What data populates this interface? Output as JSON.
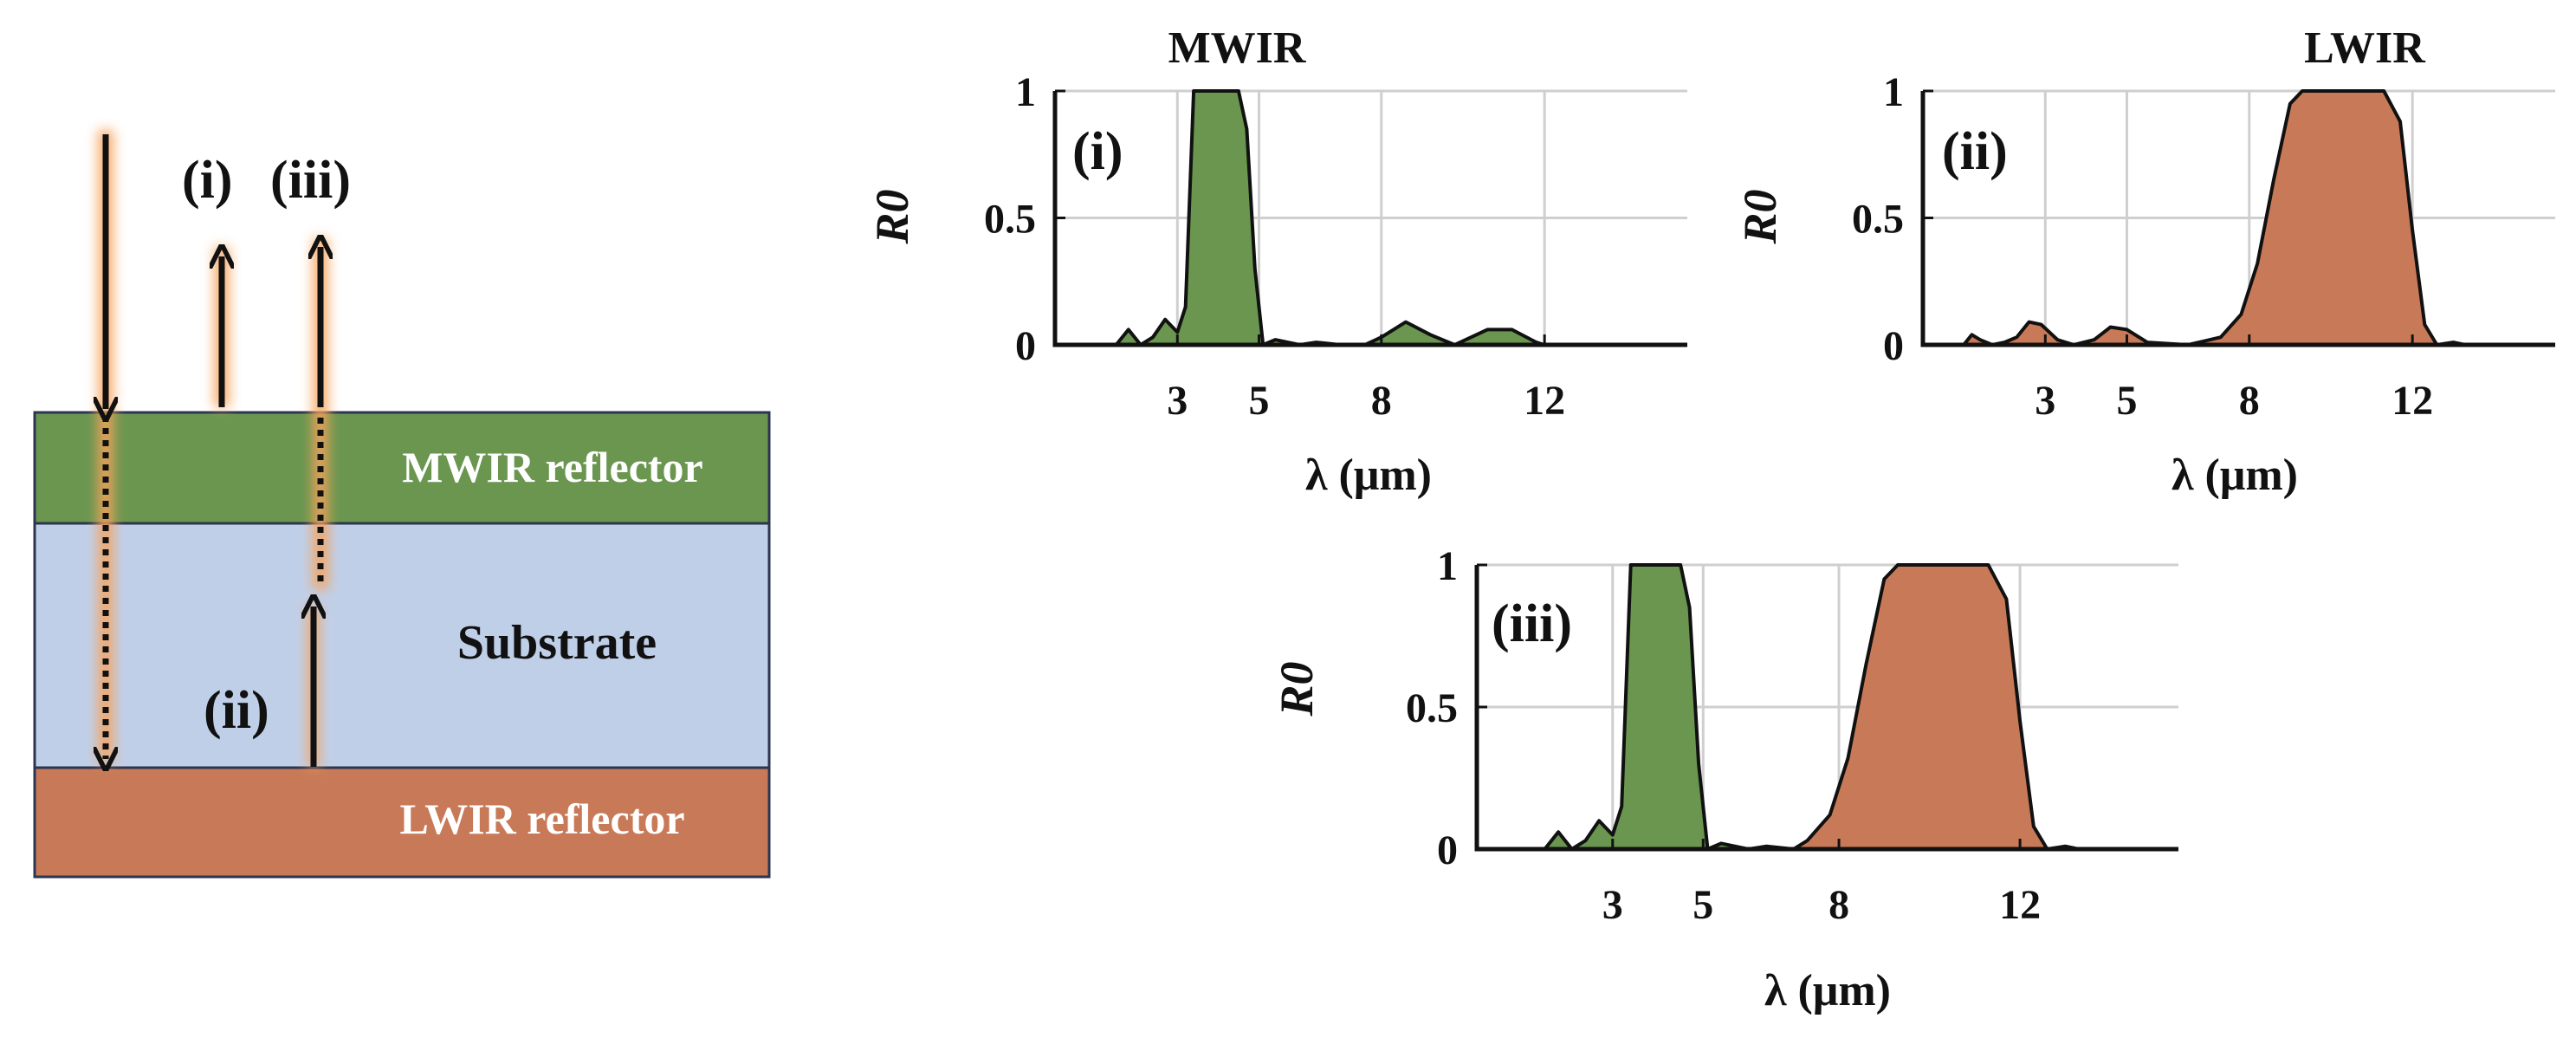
{
  "schematic": {
    "layers": [
      {
        "name": "MWIR reflector",
        "color": "#6a9650",
        "label_color": "#ffffff"
      },
      {
        "name": "Substrate",
        "color": "#c0cfe8",
        "label_color": "#111111"
      },
      {
        "name": "LWIR reflector",
        "color": "#c87a58",
        "label_color": "#ffffff"
      }
    ],
    "beam_labels": {
      "i": "(i)",
      "iii": "(iii)",
      "ii": "(ii)"
    },
    "glow_color": "#f7a35c"
  },
  "colors": {
    "mwir": "#6a9650",
    "lwir": "#c87a58",
    "grid": "#cfcfcf"
  },
  "chart_data": [
    {
      "type": "area",
      "panel": "(i)",
      "title": "MWIR",
      "xlabel": "λ (μm)",
      "ylabel": "R0",
      "xlim": [
        0,
        15.5
      ],
      "ylim": [
        0,
        1
      ],
      "xticks": [
        3,
        5,
        8,
        12
      ],
      "yticks": [
        0,
        0.5,
        1
      ],
      "grid": true,
      "series": [
        {
          "band": "mwir",
          "x": [
            1.0,
            1.5,
            1.8,
            2.1,
            2.4,
            2.7,
            3.0,
            3.2,
            3.4,
            3.6,
            3.8,
            4.5,
            4.7,
            4.9,
            5.1,
            5.4,
            6.0,
            6.4,
            7.0,
            7.6,
            8.0,
            8.6,
            9.2,
            9.8,
            10.2,
            10.6,
            11.2,
            11.8,
            12.0
          ],
          "y": [
            0,
            0,
            0.06,
            0,
            0.03,
            0.1,
            0.05,
            0.15,
            1.0,
            1.0,
            1.0,
            1.0,
            0.85,
            0.3,
            0,
            0.02,
            0,
            0.01,
            0,
            0,
            0.03,
            0.09,
            0.04,
            0,
            0.03,
            0.06,
            0.06,
            0.01,
            0
          ]
        }
      ]
    },
    {
      "type": "area",
      "panel": "(ii)",
      "title": "LWIR",
      "xlabel": "λ (μm)",
      "ylabel": "R0",
      "xlim": [
        0,
        15.5
      ],
      "ylim": [
        0,
        1
      ],
      "xticks": [
        3,
        5,
        8,
        12
      ],
      "yticks": [
        0,
        0.5,
        1
      ],
      "grid": true,
      "series": [
        {
          "band": "lwir",
          "x": [
            1.0,
            1.2,
            1.4,
            1.7,
            2.0,
            2.3,
            2.6,
            2.9,
            3.3,
            3.7,
            4.2,
            4.6,
            5.0,
            5.5,
            6.5,
            7.3,
            7.8,
            8.2,
            8.6,
            9.0,
            9.3,
            10.3,
            11.3,
            11.7,
            12.0,
            12.3,
            12.6,
            13.0,
            13.3
          ],
          "y": [
            0,
            0.04,
            0.02,
            0,
            0.01,
            0.03,
            0.09,
            0.08,
            0.02,
            0,
            0.02,
            0.07,
            0.06,
            0.01,
            0,
            0.03,
            0.12,
            0.32,
            0.65,
            0.95,
            1.0,
            1.0,
            1.0,
            0.88,
            0.45,
            0.08,
            0,
            0.01,
            0
          ]
        }
      ]
    },
    {
      "type": "area",
      "panel": "(iii)",
      "title": "",
      "xlabel": "λ (μm)",
      "ylabel": "R0",
      "xlim": [
        0,
        15.5
      ],
      "ylim": [
        0,
        1
      ],
      "xticks": [
        3,
        5,
        8,
        12
      ],
      "yticks": [
        0,
        0.5,
        1
      ],
      "grid": true,
      "series": [
        {
          "band": "mwir",
          "x": [
            1.0,
            1.5,
            1.8,
            2.1,
            2.4,
            2.7,
            3.0,
            3.2,
            3.4,
            3.6,
            3.8,
            4.5,
            4.7,
            4.9,
            5.1,
            5.4,
            6.0,
            6.4,
            7.0
          ],
          "y": [
            0,
            0,
            0.06,
            0,
            0.03,
            0.1,
            0.05,
            0.15,
            1.0,
            1.0,
            1.0,
            1.0,
            0.85,
            0.3,
            0,
            0.02,
            0,
            0.01,
            0
          ]
        },
        {
          "band": "lwir",
          "x": [
            7.0,
            7.3,
            7.8,
            8.2,
            8.6,
            9.0,
            9.3,
            10.3,
            11.3,
            11.7,
            12.0,
            12.3,
            12.6,
            13.0,
            13.3
          ],
          "y": [
            0,
            0.03,
            0.12,
            0.32,
            0.65,
            0.95,
            1.0,
            1.0,
            1.0,
            0.88,
            0.45,
            0.08,
            0,
            0.01,
            0
          ]
        }
      ]
    }
  ]
}
